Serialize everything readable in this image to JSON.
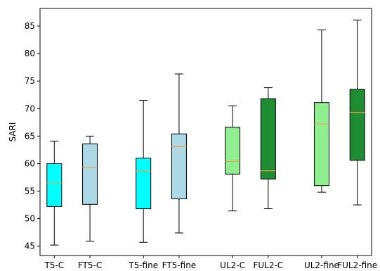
{
  "chart_data": {
    "type": "box",
    "ylabel": "SARI",
    "ylim": [
      43.3,
      88.2
    ],
    "yticks": [
      45,
      50,
      55,
      60,
      65,
      70,
      75,
      80,
      85
    ],
    "grid": false,
    "median_color": "#f5a040",
    "boxes": [
      {
        "label": "T5-C",
        "x": 1.0,
        "whisker_low": 45.2,
        "q1": 52.2,
        "median": 56.5,
        "q3": 60.0,
        "whisker_high": 64.1,
        "color": "#00ffff"
      },
      {
        "label": "FT5-C",
        "x": 2.0,
        "whisker_low": 45.9,
        "q1": 52.6,
        "median": 59.3,
        "q3": 63.6,
        "whisker_high": 65.0,
        "color": "#add8e6"
      },
      {
        "label": "T5-fine",
        "x": 3.5,
        "whisker_low": 45.7,
        "q1": 51.8,
        "median": 58.6,
        "q3": 61.0,
        "whisker_high": 71.5,
        "color": "#00ffff"
      },
      {
        "label": "FT5-fine",
        "x": 4.5,
        "whisker_low": 47.4,
        "q1": 53.6,
        "median": 63.1,
        "q3": 65.4,
        "whisker_high": 76.3,
        "color": "#add8e6"
      },
      {
        "label": "UL2-C",
        "x": 6.0,
        "whisker_low": 51.4,
        "q1": 58.1,
        "median": 60.4,
        "q3": 66.6,
        "whisker_high": 70.5,
        "color": "#90ee90"
      },
      {
        "label": "FUL2-C",
        "x": 7.0,
        "whisker_low": 51.8,
        "q1": 57.2,
        "median": 58.7,
        "q3": 71.8,
        "whisker_high": 73.8,
        "color": "#1e8c32"
      },
      {
        "label": "UL2-fine",
        "x": 8.5,
        "whisker_low": 54.8,
        "q1": 56.0,
        "median": 67.2,
        "q3": 71.1,
        "whisker_high": 84.3,
        "color": "#90ee90"
      },
      {
        "label": "FUL2-fine",
        "x": 9.5,
        "whisker_low": 52.5,
        "q1": 60.6,
        "median": 69.3,
        "q3": 73.5,
        "whisker_high": 86.1,
        "color": "#1e8c32"
      }
    ]
  }
}
